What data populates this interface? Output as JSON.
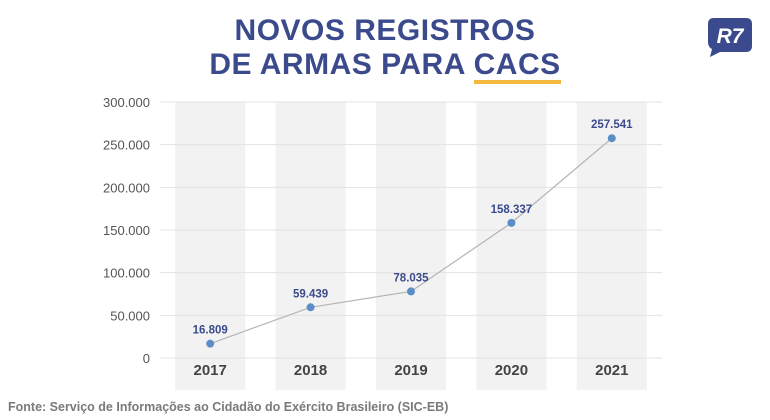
{
  "header": {
    "title_line1": "NOVOS REGISTROS",
    "title_line2_prefix": "DE ARMAS PARA ",
    "title_line2_highlight": "CACS"
  },
  "logo": {
    "text": "R7"
  },
  "colors": {
    "title": "#3b4a8c",
    "highlight_underline": "#f4b93e",
    "column_band": "#f2f2f2",
    "line": "#b5b5b5",
    "point": "#5b8ec9",
    "value_label": "#3b4a8c",
    "axis_text": "#555555",
    "year_label": "#444444",
    "logo_bg": "#3b4a8c"
  },
  "chart_data": {
    "type": "line",
    "categories": [
      "2017",
      "2018",
      "2019",
      "2020",
      "2021"
    ],
    "values": [
      16809,
      59439,
      78035,
      158337,
      257541
    ],
    "value_labels": [
      "16.809",
      "59.439",
      "78.035",
      "158.337",
      "257.541"
    ],
    "yticks": [
      0,
      50000,
      100000,
      150000,
      200000,
      250000,
      300000
    ],
    "ytick_labels": [
      "0",
      "50.000",
      "100.000",
      "150.000",
      "200.000",
      "250.000",
      "300.000"
    ],
    "ylim": [
      0,
      300000
    ],
    "grid": true,
    "legend": "none"
  },
  "footer": {
    "source": "Fonte: Serviço de Informações ao Cidadão do Exército Brasileiro (SIC-EB)"
  }
}
